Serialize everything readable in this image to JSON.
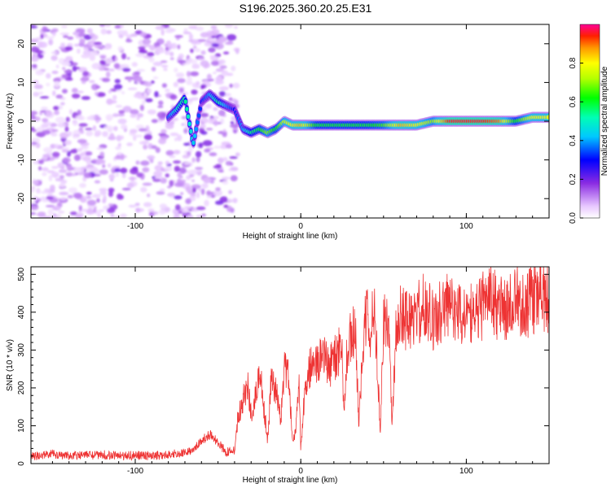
{
  "title": "S196.2025.360.20.25.E31",
  "chart_data": [
    {
      "type": "heatmap",
      "xlabel": "Height of straight line (km)",
      "ylabel": "Frequency (Hz)",
      "xlim": [
        -163,
        150
      ],
      "ylim": [
        -25,
        25
      ],
      "xticks": [
        -100,
        0,
        100
      ],
      "yticks": [
        -20,
        -10,
        0,
        10,
        20
      ],
      "colorbar": {
        "label": "Normalized spectral amplitude",
        "range": [
          0,
          1
        ],
        "ticks": [
          "0.0",
          "0.2",
          "0.4",
          "0.6",
          "0.8"
        ]
      },
      "ridge": {
        "x": [
          -80,
          -75,
          -70,
          -65,
          -60,
          -55,
          -50,
          -45,
          -40,
          -35,
          -30,
          -25,
          -20,
          -15,
          -10,
          -5,
          0,
          10,
          20,
          30,
          40,
          50,
          60,
          70,
          80,
          90,
          100,
          110,
          120,
          130,
          140,
          150
        ],
        "freq": [
          1,
          3,
          6,
          -6,
          5,
          7,
          5,
          4,
          3,
          -2,
          -3,
          -2,
          -3,
          -2,
          0,
          -1,
          -1,
          -1,
          -1,
          -1,
          -1,
          -1,
          -1,
          -1,
          0,
          0,
          0,
          0,
          0,
          0,
          1,
          1
        ],
        "amplitude": [
          0.35,
          0.5,
          0.55,
          0.45,
          0.3,
          0.4,
          0.55,
          0.4,
          0.3,
          0.4,
          0.55,
          0.6,
          0.7,
          0.6,
          0.75,
          0.8,
          0.85,
          0.6,
          0.6,
          0.6,
          0.6,
          0.65,
          0.85,
          0.8,
          0.7,
          0.95,
          0.95,
          0.95,
          0.9,
          0.6,
          0.8,
          0.8
        ]
      }
    },
    {
      "type": "line",
      "xlabel": "Height of straight line (km)",
      "ylabel": "SNR (10 * v/v)",
      "xlim": [
        -163,
        150
      ],
      "ylim": [
        0,
        520
      ],
      "xticks": [
        -100,
        0,
        100
      ],
      "yticks": [
        0,
        100,
        200,
        300,
        400,
        500
      ],
      "color": "#ee3333",
      "series": [
        {
          "name": "SNR",
          "x": [
            -163,
            -150,
            -140,
            -130,
            -120,
            -110,
            -100,
            -90,
            -80,
            -70,
            -65,
            -60,
            -55,
            -50,
            -45,
            -40,
            -38,
            -35,
            -32,
            -30,
            -27,
            -25,
            -22,
            -20,
            -18,
            -15,
            -12,
            -10,
            -7,
            -5,
            -3,
            -1,
            0,
            3,
            6,
            10,
            14,
            18,
            22,
            25,
            26,
            28,
            30,
            33,
            35,
            38,
            40,
            41,
            43,
            45,
            48,
            50,
            52,
            53,
            55,
            58,
            60,
            65,
            70,
            75,
            80,
            85,
            90,
            95,
            100,
            105,
            110,
            115,
            120,
            125,
            130,
            135,
            140,
            145,
            150
          ],
          "y": [
            20,
            25,
            20,
            22,
            24,
            20,
            22,
            20,
            25,
            28,
            40,
            60,
            75,
            55,
            30,
            35,
            120,
            170,
            200,
            130,
            180,
            250,
            140,
            60,
            210,
            200,
            120,
            250,
            230,
            50,
            90,
            200,
            40,
            220,
            260,
            270,
            280,
            260,
            290,
            310,
            120,
            300,
            330,
            360,
            110,
            350,
            420,
            310,
            380,
            380,
            90,
            360,
            400,
            390,
            110,
            380,
            400,
            370,
            390,
            420,
            380,
            400,
            420,
            390,
            410,
            380,
            420,
            430,
            410,
            400,
            440,
            420,
            430,
            450,
            440
          ]
        }
      ]
    }
  ]
}
